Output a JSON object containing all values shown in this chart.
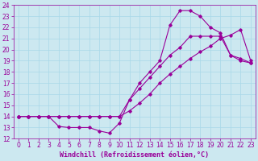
{
  "xlabel": "Windchill (Refroidissement éolien,°C)",
  "bg_color": "#cce8f0",
  "line_color": "#990099",
  "xlim": [
    -0.5,
    23.5
  ],
  "ylim": [
    12,
    24
  ],
  "xticks": [
    0,
    1,
    2,
    3,
    4,
    5,
    6,
    7,
    8,
    9,
    10,
    11,
    12,
    13,
    14,
    15,
    16,
    17,
    18,
    19,
    20,
    21,
    22,
    23
  ],
  "yticks": [
    12,
    13,
    14,
    15,
    16,
    17,
    18,
    19,
    20,
    21,
    22,
    23,
    24
  ],
  "curve1_x": [
    0,
    1,
    2,
    3,
    4,
    5,
    6,
    7,
    8,
    9,
    10,
    11,
    12,
    13,
    14,
    15,
    16,
    17,
    18,
    19,
    20,
    21,
    22,
    23
  ],
  "curve1_y": [
    14,
    14,
    14,
    14,
    13.1,
    13.0,
    13.0,
    13.0,
    12.7,
    12.5,
    13.4,
    15.5,
    16.5,
    17.5,
    18.5,
    19.5,
    20.2,
    21.2,
    21.2,
    21.2,
    21.2,
    19.5,
    19.2,
    18.8
  ],
  "curve2_x": [
    0,
    1,
    2,
    3,
    4,
    5,
    6,
    7,
    8,
    9,
    10,
    11,
    12,
    13,
    14,
    15,
    16,
    17,
    18,
    19,
    20,
    21,
    22,
    23
  ],
  "curve2_y": [
    14,
    14,
    14,
    14,
    14,
    14,
    14,
    14,
    14,
    14,
    14,
    14.5,
    15.2,
    16.0,
    17.0,
    17.8,
    18.5,
    19.2,
    19.8,
    20.3,
    21.0,
    21.3,
    21.8,
    19.0
  ],
  "curve3_x": [
    0,
    1,
    2,
    3,
    4,
    5,
    6,
    7,
    8,
    9,
    10,
    11,
    12,
    13,
    14,
    15,
    16,
    17,
    18,
    19,
    20,
    21,
    22,
    23
  ],
  "curve3_y": [
    14,
    14,
    14,
    14,
    14,
    14,
    14,
    14,
    14,
    14,
    14,
    15.5,
    17.0,
    18.0,
    19.0,
    22.2,
    23.5,
    23.5,
    23.0,
    22.0,
    21.5,
    19.5,
    19.0,
    18.8
  ],
  "grid_color": "#a8d8e8",
  "tick_fontsize": 5.5,
  "xlabel_fontsize": 6,
  "marker": "D",
  "markersize": 1.8,
  "linewidth": 0.8
}
